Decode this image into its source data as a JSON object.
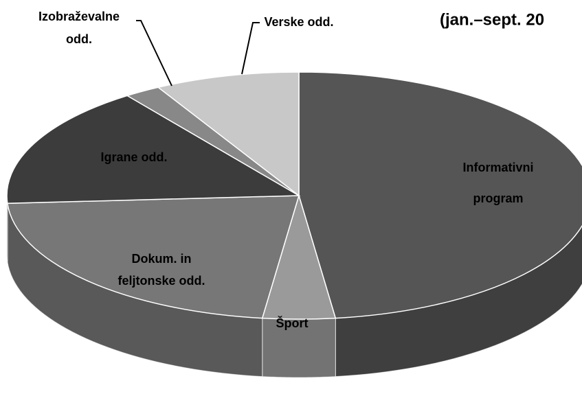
{
  "chart_data": {
    "type": "pie3d",
    "subtitle": "(jan.–sept. 20",
    "categories": [
      "Informativni program",
      "Šport",
      "Dokum. in feljtonske odd.",
      "Igrane odd.",
      "Izobraževalne odd.",
      "Verske odd."
    ],
    "values": [
      48,
      4,
      22,
      16,
      2,
      8
    ],
    "colors": [
      "#555555",
      "#9a9a9a",
      "#777777",
      "#3c3c3c",
      "#888888",
      "#c8c8c8"
    ]
  }
}
